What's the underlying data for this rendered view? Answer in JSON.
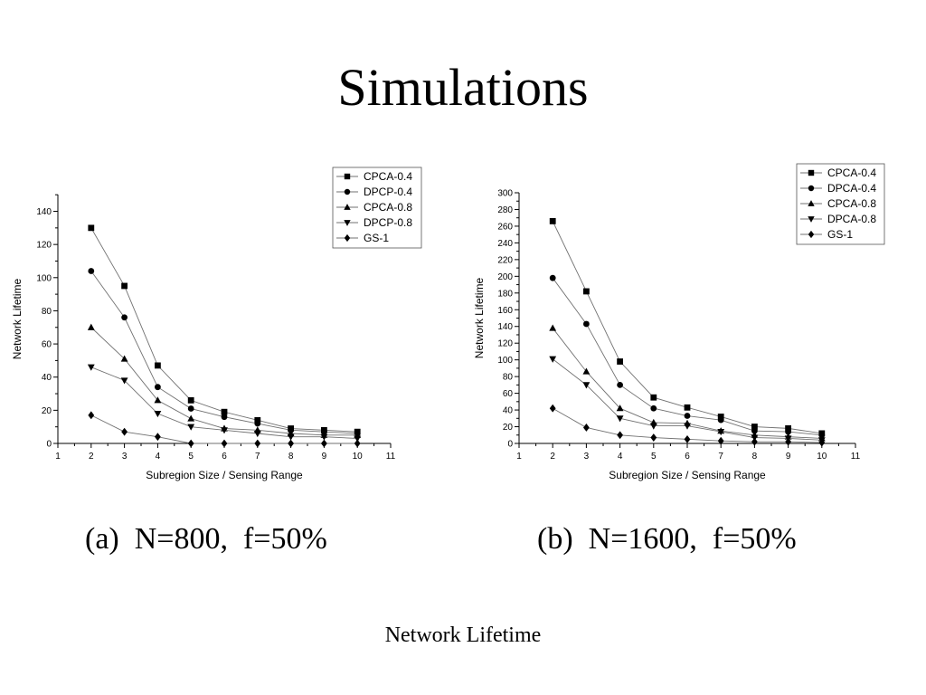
{
  "slide": {
    "title": "Simulations",
    "footer": "Network Lifetime",
    "captions": [
      "(a)  N=800,  f=50%",
      "(b)  N=1600,  f=50%"
    ]
  },
  "colors": {
    "line": "#707070",
    "marker": "#000000",
    "axis": "#000000"
  },
  "chart_data": [
    {
      "type": "line",
      "xlabel": "Subregion Size / Sensing Range",
      "ylabel": "Network Lifetime",
      "xlim": [
        1,
        11
      ],
      "ylim": [
        0,
        150
      ],
      "xticks": [
        1,
        2,
        3,
        4,
        5,
        6,
        7,
        8,
        9,
        10,
        11
      ],
      "yticks": [
        0,
        20,
        40,
        60,
        80,
        100,
        120,
        140
      ],
      "x": [
        2,
        3,
        4,
        5,
        6,
        7,
        8,
        9,
        10
      ],
      "legend_position": "top-right",
      "series": [
        {
          "name": "CPCA-0.4",
          "marker": "square",
          "values": [
            130,
            95,
            47,
            26,
            19,
            14,
            9,
            8,
            7
          ]
        },
        {
          "name": "DPCP-0.4",
          "marker": "circle",
          "values": [
            104,
            76,
            34,
            21,
            16,
            12,
            8,
            7,
            6
          ]
        },
        {
          "name": "CPCA-0.8",
          "marker": "triangle-up",
          "values": [
            70,
            51,
            26,
            15,
            9,
            8,
            6,
            5,
            5
          ]
        },
        {
          "name": "DPCP-0.8",
          "marker": "triangle-down",
          "values": [
            46,
            38,
            18,
            10,
            8,
            6,
            4,
            4,
            3
          ]
        },
        {
          "name": "GS-1",
          "marker": "diamond",
          "values": [
            17,
            7,
            4,
            0,
            0,
            0,
            0,
            0,
            0
          ]
        }
      ]
    },
    {
      "type": "line",
      "xlabel": "Subregion Size / Sensing Range",
      "ylabel": "Network Lifetime",
      "xlim": [
        1,
        11
      ],
      "ylim": [
        0,
        300
      ],
      "xticks": [
        1,
        2,
        3,
        4,
        5,
        6,
        7,
        8,
        9,
        10,
        11
      ],
      "yticks": [
        0,
        20,
        40,
        60,
        80,
        100,
        120,
        140,
        160,
        180,
        200,
        220,
        240,
        260,
        280,
        300
      ],
      "x": [
        2,
        3,
        4,
        5,
        6,
        7,
        8,
        9,
        10
      ],
      "legend_position": "top-right",
      "series": [
        {
          "name": "CPCA-0.4",
          "marker": "square",
          "values": [
            266,
            182,
            98,
            55,
            43,
            32,
            20,
            18,
            12
          ]
        },
        {
          "name": "DPCA-0.4",
          "marker": "circle",
          "values": [
            198,
            143,
            70,
            42,
            33,
            28,
            15,
            14,
            10
          ]
        },
        {
          "name": "CPCA-0.8",
          "marker": "triangle-up",
          "values": [
            138,
            86,
            42,
            25,
            24,
            15,
            10,
            8,
            6
          ]
        },
        {
          "name": "DPCA-0.8",
          "marker": "triangle-down",
          "values": [
            101,
            70,
            30,
            21,
            21,
            14,
            7,
            6,
            4
          ]
        },
        {
          "name": "GS-1",
          "marker": "diamond",
          "values": [
            42,
            19,
            10,
            7,
            5,
            3,
            2,
            2,
            1
          ]
        }
      ]
    }
  ]
}
